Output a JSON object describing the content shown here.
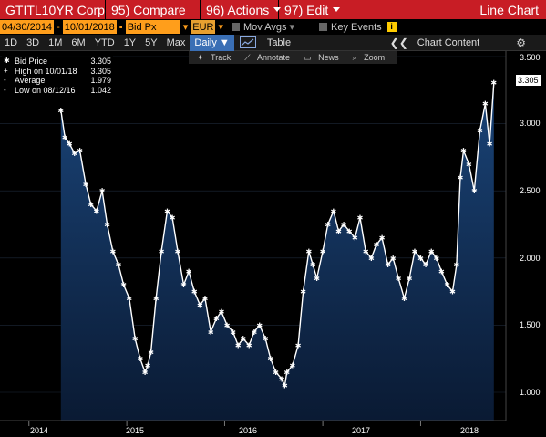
{
  "menu": {
    "ticker": "GTITL10YR Corp",
    "compare": "95) Compare",
    "actions": "96) Actions",
    "edit": "97) Edit",
    "title": "Line Chart"
  },
  "controls": {
    "start_date": "04/30/2014",
    "dash": "-",
    "end_date": "10/01/2018",
    "field": "Bid Px",
    "currency": "EUR",
    "mov_avgs": "Mov Avgs",
    "key_events": "Key Events",
    "info": "i"
  },
  "ranges": [
    "1D",
    "3D",
    "1M",
    "6M",
    "YTD",
    "1Y",
    "5Y",
    "Max"
  ],
  "frequency": "Daily",
  "table_label": "Table",
  "chevrons": "❮❮",
  "chart_content_label": "Chart Content",
  "tools": [
    "Track",
    "Annotate",
    "News",
    "Zoom"
  ],
  "legend": {
    "bid_label": "Bid Price",
    "bid_value": "3.305",
    "high_label": "High on 10/01/18",
    "high_value": "3.305",
    "avg_label": "Average",
    "avg_value": "1.979",
    "low_label": "Low on 08/12/16",
    "low_value": "1.042"
  },
  "current_value_badge": "3.305",
  "colors": {
    "menu_red": "#c81d25",
    "field_orange": "#ff9e1b",
    "area_top": "#16365f",
    "area_bottom": "#0c1e38",
    "line": "#ffffff",
    "selected_blue": "#3a6fb5"
  },
  "chart_data": {
    "type": "area",
    "y_ticks": [
      "3.500",
      "3.000",
      "2.500",
      "2.000",
      "1.500",
      "1.000"
    ],
    "x_ticks": [
      "2014",
      "2015",
      "2016",
      "2017",
      "2018"
    ],
    "ylim": [
      0.8,
      3.55
    ],
    "series": [
      {
        "x": [
          "2014-04-30",
          "2014-05-15",
          "2014-06-01",
          "2014-06-20",
          "2014-07-10",
          "2014-08-01",
          "2014-08-20",
          "2014-09-10",
          "2014-10-01",
          "2014-10-20",
          "2014-11-10",
          "2014-12-01",
          "2014-12-20",
          "2015-01-10",
          "2015-02-01",
          "2015-02-20",
          "2015-03-10",
          "2015-03-20",
          "2015-04-01",
          "2015-04-20",
          "2015-05-10",
          "2015-06-01",
          "2015-06-20",
          "2015-07-10",
          "2015-08-01",
          "2015-08-20",
          "2015-09-10",
          "2015-10-01",
          "2015-10-20",
          "2015-11-10",
          "2015-12-01",
          "2015-12-20",
          "2016-01-10",
          "2016-02-01",
          "2016-02-20",
          "2016-03-10",
          "2016-04-01",
          "2016-04-20",
          "2016-05-10",
          "2016-06-01",
          "2016-06-20",
          "2016-07-10",
          "2016-08-01",
          "2016-08-12",
          "2016-08-20",
          "2016-09-10",
          "2016-10-01",
          "2016-10-20",
          "2016-11-10",
          "2016-11-25",
          "2016-12-10",
          "2017-01-01",
          "2017-01-20",
          "2017-02-10",
          "2017-03-01",
          "2017-03-20",
          "2017-04-10",
          "2017-05-01",
          "2017-05-20",
          "2017-06-10",
          "2017-07-01",
          "2017-07-20",
          "2017-08-10",
          "2017-09-01",
          "2017-09-20",
          "2017-10-10",
          "2017-11-01",
          "2017-11-20",
          "2017-12-10",
          "2018-01-01",
          "2018-01-20",
          "2018-02-10",
          "2018-03-01",
          "2018-03-20",
          "2018-04-10",
          "2018-04-30",
          "2018-05-15",
          "2018-05-29",
          "2018-06-10",
          "2018-06-30",
          "2018-07-20",
          "2018-08-10",
          "2018-08-30",
          "2018-09-15",
          "2018-10-01"
        ],
        "y": [
          3.1,
          2.9,
          2.85,
          2.78,
          2.8,
          2.55,
          2.4,
          2.35,
          2.5,
          2.25,
          2.05,
          1.95,
          1.8,
          1.7,
          1.4,
          1.25,
          1.15,
          1.2,
          1.3,
          1.7,
          2.05,
          2.35,
          2.3,
          2.05,
          1.8,
          1.9,
          1.75,
          1.65,
          1.7,
          1.45,
          1.55,
          1.6,
          1.5,
          1.45,
          1.35,
          1.4,
          1.35,
          1.45,
          1.5,
          1.4,
          1.25,
          1.15,
          1.1,
          1.05,
          1.15,
          1.2,
          1.35,
          1.75,
          2.05,
          1.95,
          1.85,
          2.05,
          2.25,
          2.35,
          2.2,
          2.25,
          2.2,
          2.15,
          2.3,
          2.05,
          2.0,
          2.1,
          2.15,
          1.95,
          2.0,
          1.85,
          1.7,
          1.85,
          2.05,
          2.0,
          1.95,
          2.05,
          2.0,
          1.9,
          1.8,
          1.75,
          1.95,
          2.6,
          2.8,
          2.7,
          2.5,
          2.95,
          3.15,
          2.85,
          3.305
        ]
      }
    ]
  }
}
